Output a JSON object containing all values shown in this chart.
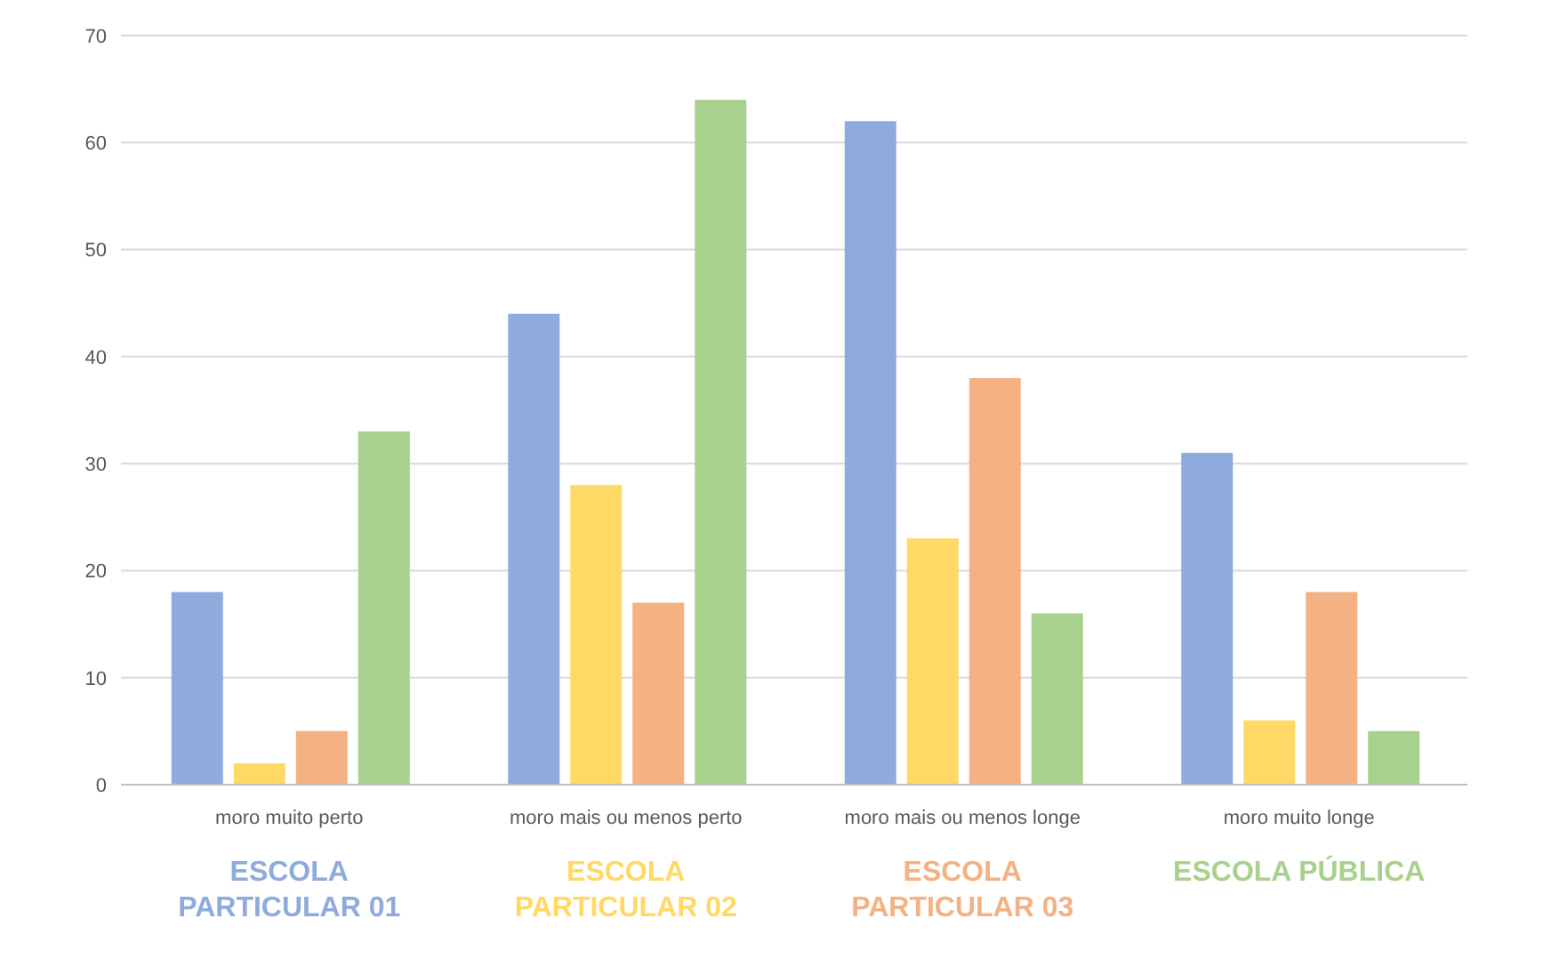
{
  "chart_data": {
    "type": "bar",
    "categories": [
      "moro muito perto",
      "moro mais ou menos perto",
      "moro mais ou menos longe",
      "moro muito longe"
    ],
    "series": [
      {
        "name": "ESCOLA PARTICULAR 01",
        "color": "#8faadc",
        "values": [
          18,
          44,
          62,
          31
        ]
      },
      {
        "name": "ESCOLA PARTICULAR 02",
        "color": "#ffd966",
        "values": [
          2,
          28,
          23,
          6
        ]
      },
      {
        "name": "ESCOLA PARTICULAR 03",
        "color": "#f4b183",
        "values": [
          5,
          17,
          38,
          18
        ]
      },
      {
        "name": "ESCOLA PÚBLICA",
        "color": "#a9d18e",
        "values": [
          33,
          64,
          16,
          5
        ]
      }
    ],
    "ylim": [
      0,
      70
    ],
    "yticks": [
      0,
      10,
      20,
      30,
      40,
      50,
      60,
      70
    ],
    "grid": "y",
    "legend": "bottom"
  }
}
